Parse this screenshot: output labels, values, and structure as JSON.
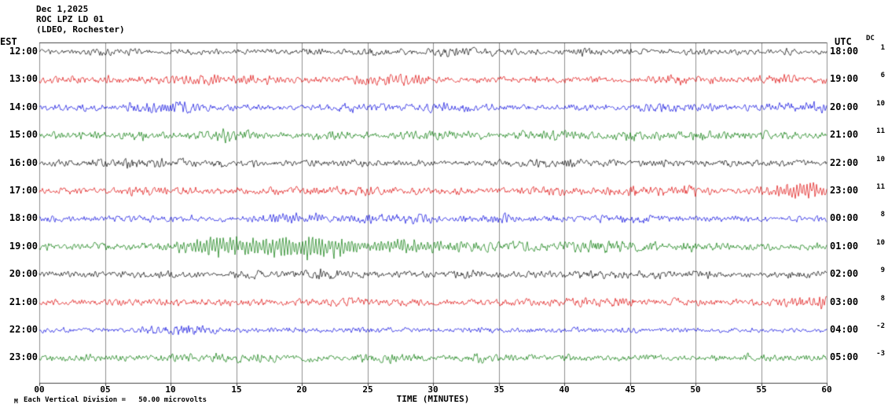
{
  "header": {
    "date": "Dec 1,2025",
    "station": "ROC LPZ LD 01",
    "location": "(LDEO, Rochester)"
  },
  "axes": {
    "left_label": "EST",
    "right_label": "UTC",
    "dc_label": "DC",
    "x_label": "TIME (MINUTES)",
    "x_ticks": [
      "00",
      "05",
      "10",
      "15",
      "20",
      "25",
      "30",
      "35",
      "40",
      "45",
      "50",
      "55",
      "60"
    ]
  },
  "footer": {
    "marker": "M",
    "scale_note": "Each Vertical Division =   50.00 microvolts"
  },
  "chart_data": {
    "type": "line",
    "title": "ROC LPZ LD 01 (LDEO, Rochester) seismogram, Dec 1,2025",
    "xlabel": "TIME (MINUTES)",
    "x_range_minutes": [
      0,
      60
    ],
    "grid_interval_minutes": 5,
    "vertical_division_microvolts": 50.0,
    "colors_cycle": [
      "#000000",
      "#dd0000",
      "#0000dd",
      "#007700"
    ],
    "rows": [
      {
        "est": "12:00",
        "utc": "18:00",
        "dc": "1",
        "color": "#000000",
        "base_amp": 3.2,
        "events": [
          {
            "start": 4,
            "end": 6,
            "peak": 2
          },
          {
            "start": 30,
            "end": 33,
            "peak": 2
          }
        ]
      },
      {
        "est": "13:00",
        "utc": "19:00",
        "dc": "6",
        "color": "#dd0000",
        "base_amp": 4.0,
        "events": [
          {
            "start": 11,
            "end": 14,
            "peak": 3
          },
          {
            "start": 25,
            "end": 29,
            "peak": 4
          },
          {
            "start": 55,
            "end": 58,
            "peak": 3
          }
        ]
      },
      {
        "est": "14:00",
        "utc": "20:00",
        "dc": "10",
        "color": "#0000dd",
        "base_amp": 3.5,
        "events": [
          {
            "start": 9,
            "end": 12,
            "peak": 4
          },
          {
            "start": 56,
            "end": 60,
            "peak": 4
          }
        ]
      },
      {
        "est": "15:00",
        "utc": "21:00",
        "dc": "11",
        "color": "#007700",
        "base_amp": 4.0,
        "events": [
          {
            "start": 13,
            "end": 16,
            "peak": 5
          },
          {
            "start": 21,
            "end": 23,
            "peak": 3
          },
          {
            "start": 44,
            "end": 47,
            "peak": 3
          }
        ]
      },
      {
        "est": "16:00",
        "utc": "22:00",
        "dc": "10",
        "color": "#000000",
        "base_amp": 3.5,
        "events": [
          {
            "start": 38,
            "end": 41,
            "peak": 3
          }
        ]
      },
      {
        "est": "17:00",
        "utc": "23:00",
        "dc": "11",
        "color": "#dd0000",
        "base_amp": 4.0,
        "events": [
          {
            "start": 44,
            "end": 47,
            "peak": 3
          },
          {
            "start": 56,
            "end": 60,
            "peak": 8,
            "osc": true
          }
        ]
      },
      {
        "est": "18:00",
        "utc": "00:00",
        "dc": "8",
        "color": "#0000dd",
        "base_amp": 3.5,
        "events": [
          {
            "start": 17,
            "end": 22,
            "peak": 5,
            "osc": true
          },
          {
            "start": 34,
            "end": 36,
            "peak": 3
          }
        ]
      },
      {
        "est": "19:00",
        "utc": "01:00",
        "dc": "10",
        "color": "#007700",
        "base_amp": 4.0,
        "events": [
          {
            "start": 10.5,
            "end": 15,
            "peak": 9,
            "osc": true
          },
          {
            "start": 15,
            "end": 24,
            "peak": 13,
            "osc": true
          },
          {
            "start": 24,
            "end": 33,
            "peak": 6,
            "osc": true
          },
          {
            "start": 33,
            "end": 48,
            "peak": 3
          }
        ]
      },
      {
        "est": "20:00",
        "utc": "02:00",
        "dc": "9",
        "color": "#000000",
        "base_amp": 3.0,
        "events": [
          {
            "start": 20,
            "end": 23,
            "peak": 3
          }
        ]
      },
      {
        "est": "21:00",
        "utc": "03:00",
        "dc": "8",
        "color": "#dd0000",
        "base_amp": 3.8,
        "events": [
          {
            "start": 23,
            "end": 26,
            "peak": 3
          },
          {
            "start": 40,
            "end": 43,
            "peak": 3
          }
        ]
      },
      {
        "est": "22:00",
        "utc": "04:00",
        "dc": "-2",
        "color": "#0000dd",
        "base_amp": 3.0,
        "events": [
          {
            "start": 9,
            "end": 13,
            "peak": 4
          }
        ]
      },
      {
        "est": "23:00",
        "utc": "05:00",
        "dc": "-3",
        "color": "#007700",
        "base_amp": 3.5,
        "events": [
          {
            "start": 14,
            "end": 17,
            "peak": 4
          },
          {
            "start": 33,
            "end": 35,
            "peak": 3
          }
        ]
      }
    ]
  }
}
